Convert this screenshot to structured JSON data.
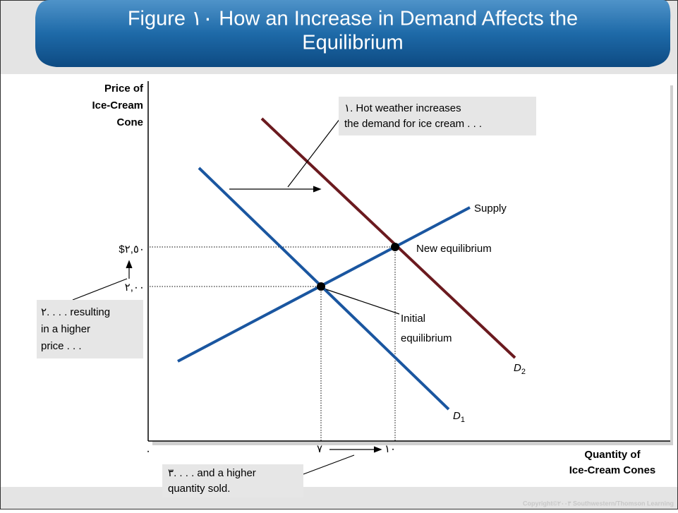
{
  "header": {
    "title_lines": [
      "Figure ١٠  How an Increase in Demand Affects the",
      "Equilibrium"
    ]
  },
  "axes": {
    "y_label_lines": [
      "Price of",
      "Ice-Cream",
      "Cone"
    ],
    "x_label_lines": [
      "Quantity of",
      "Ice-Cream Cones"
    ],
    "origin": "٠",
    "y_ticks": [
      "$٢,٥٠",
      "٢,٠٠"
    ],
    "x_ticks": [
      "٧",
      "١٠"
    ]
  },
  "curves": {
    "supply": "Supply",
    "d1": {
      "letter": "D",
      "sub": "1"
    },
    "d2": {
      "letter": "D",
      "sub": "2"
    }
  },
  "points": {
    "new": "New equilibrium",
    "initial_lines": [
      "Initial",
      "equilibrium"
    ]
  },
  "annotations": {
    "step1_lines": [
      "١. Hot weather increases",
      "the demand for ice cream . . ."
    ],
    "step2_lines": [
      "٢. . . . resulting",
      "in a higher",
      "price . . ."
    ],
    "step3_lines": [
      "٣. . . . and a higher",
      "quantity sold."
    ]
  },
  "footer": {
    "copyright": "Copyright©٢٠٠٣ Southwestern/Thomson Learning"
  }
}
